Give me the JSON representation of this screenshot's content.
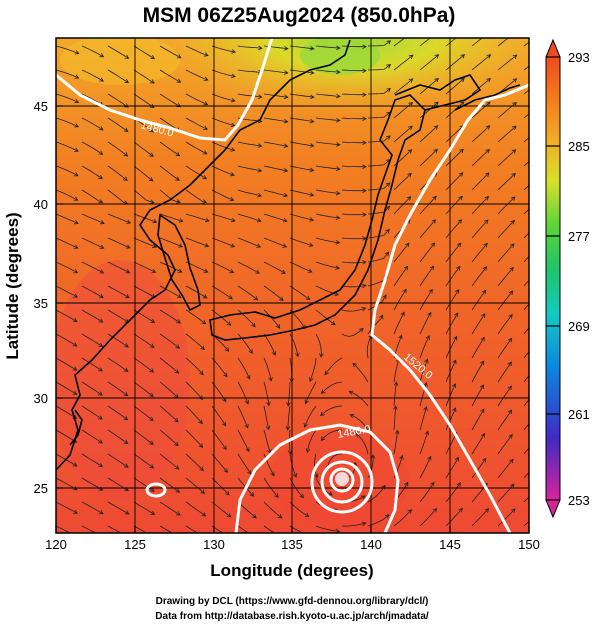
{
  "title": "MSM 06Z25Aug2024 (850.0hPa)",
  "xlabel": "Longitude (degrees)",
  "ylabel": "Latitude  (degrees)",
  "xticks": [
    "120",
    "125",
    "130",
    "135",
    "140",
    "145",
    "150"
  ],
  "yticks": [
    "25",
    "30",
    "35",
    "40",
    "45"
  ],
  "colorbar": {
    "ticks": [
      "293",
      "285",
      "277",
      "269",
      "261",
      "253"
    ],
    "colors": [
      "#d9239b",
      "#3f2bc4",
      "#0b86e0",
      "#14c9c1",
      "#1fc46a",
      "#5cd43a",
      "#d8e02a",
      "#f0b22a",
      "#f57f1c",
      "#ee4a1e"
    ]
  },
  "map": {
    "lon_range": [
      120,
      150
    ],
    "lat_range": [
      23,
      48
    ],
    "shading_colors": {
      "cool": "#b6dd2c",
      "mid": "#f2a324",
      "warm": "#f06a24",
      "hot": "#ee4a33"
    },
    "contour_labels": [
      "1480.0",
      "1520.0",
      "1480.0"
    ]
  },
  "credits": {
    "line1": "Drawing by DCL (https://www.gfd-dennou.org/library/dcl/)",
    "line2": "Data from http://database.rish.kyoto-u.ac.jp/arch/jmadata/"
  }
}
